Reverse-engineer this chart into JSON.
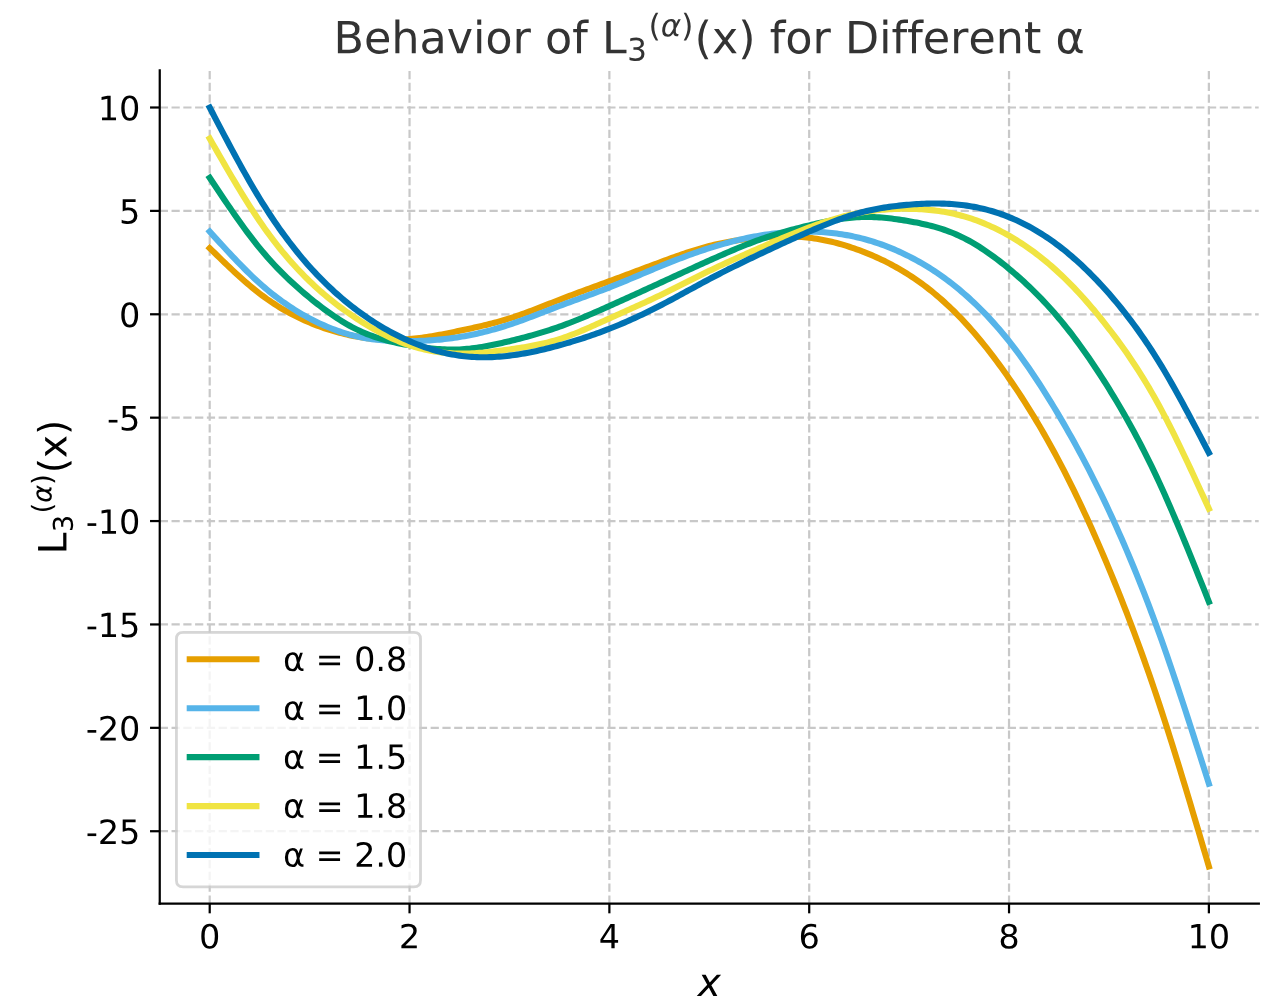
{
  "chart_data": {
    "type": "line",
    "title": "Behavior of L$_{3}$$^{(α)}$(x) for Different α",
    "xlabel": "x",
    "ylabel": "L$_{3}$$^{(α)}$(x)",
    "x": [
      0,
      0.5,
      1,
      1.5,
      2,
      2.5,
      3,
      3.5,
      4,
      4.5,
      5,
      5.5,
      6,
      6.5,
      7,
      7.5,
      8,
      8.5,
      9,
      9.5,
      10
    ],
    "series": [
      {
        "name": "α = 0.8",
        "color": "#e69f00",
        "values": [
          3.2,
          1,
          -0.4,
          -1.1,
          -1.2,
          -0.8,
          -0.2,
          0.7,
          1.6,
          2.5,
          3.3,
          3.7,
          3.7,
          3.1,
          1.9,
          -0.1,
          -3.1,
          -7.1,
          -12.3,
          -18.8,
          -26.7
        ]
      },
      {
        "name": "α = 1.0",
        "color": "#56b4e9",
        "values": [
          4,
          1.5,
          -0.2,
          -1.1,
          -1.3,
          -1.1,
          -0.5,
          0.4,
          1.3,
          2.3,
          3.2,
          3.8,
          4,
          3.7,
          2.8,
          1.2,
          -1.3,
          -4.9,
          -9.5,
          -15.4,
          -22.7
        ]
      },
      {
        "name": "α = 1.5",
        "color": "#009e73",
        "values": [
          6.6,
          3.2,
          0.8,
          -0.8,
          -1.5,
          -1.7,
          -1.3,
          -0.6,
          0.4,
          1.5,
          2.6,
          3.6,
          4.3,
          4.7,
          4.5,
          3.8,
          2.2,
          -0.2,
          -3.6,
          -8.1,
          -13.9
        ]
      },
      {
        "name": "α = 1.8",
        "color": "#f0e442",
        "values": [
          8.5,
          4.5,
          1.6,
          -0.3,
          -1.5,
          -1.9,
          -1.7,
          -1.2,
          -0.2,
          0.9,
          2.1,
          3.2,
          4.2,
          4.9,
          5.1,
          4.8,
          3.8,
          2,
          -0.7,
          -4.4,
          -9.4
        ]
      },
      {
        "name": "α = 2.0",
        "color": "#0072b2",
        "values": [
          10,
          5.6,
          2.3,
          0.1,
          -1.3,
          -2,
          -2,
          -1.5,
          -0.7,
          0.4,
          1.7,
          2.9,
          4,
          4.9,
          5.3,
          5.3,
          4.7,
          3.3,
          1,
          -2.3,
          -6.7
        ]
      }
    ],
    "xlim": [
      -0.5,
      10.5
    ],
    "ylim": [
      -28.5,
      11.8
    ],
    "xticks": [
      0,
      2,
      4,
      6,
      8,
      10
    ],
    "yticks": [
      -25,
      -20,
      -15,
      -10,
      -5,
      0,
      5,
      10
    ],
    "grid": true,
    "legend": "bottom left",
    "line_style": "solid",
    "marker": "none"
  }
}
